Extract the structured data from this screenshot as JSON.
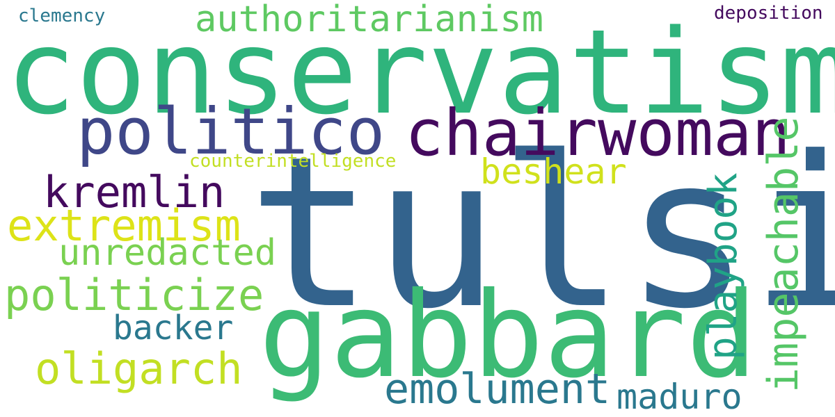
{
  "palette": {
    "background": "#ffffff"
  },
  "words": [
    {
      "id": "tulsi",
      "text": "tulsi",
      "color": "#33638d",
      "orientation": "horizontal"
    },
    {
      "id": "conservatism",
      "text": "conservatism",
      "color": "#2fb47c",
      "orientation": "horizontal"
    },
    {
      "id": "gabbard",
      "text": "gabbard",
      "color": "#3cbb75",
      "orientation": "horizontal"
    },
    {
      "id": "chairwoman",
      "text": "chairwoman",
      "color": "#440a5e",
      "orientation": "horizontal"
    },
    {
      "id": "politico",
      "text": "politico",
      "color": "#3f4788",
      "orientation": "horizontal"
    },
    {
      "id": "authoritarianism",
      "text": "authoritarianism",
      "color": "#5ec962",
      "orientation": "horizontal"
    },
    {
      "id": "impeachable",
      "text": "impeachable",
      "color": "#55c667",
      "orientation": "vertical"
    },
    {
      "id": "playbook",
      "text": "playbook",
      "color": "#20a386",
      "orientation": "vertical"
    },
    {
      "id": "kremlin",
      "text": "kremlin",
      "color": "#440a5e",
      "orientation": "horizontal"
    },
    {
      "id": "extremism",
      "text": "extremism",
      "color": "#dde318",
      "orientation": "horizontal"
    },
    {
      "id": "politicize",
      "text": "politicize",
      "color": "#7ad151",
      "orientation": "horizontal"
    },
    {
      "id": "emolument",
      "text": "emolument",
      "color": "#2a788e",
      "orientation": "horizontal"
    },
    {
      "id": "oligarch",
      "text": "oligarch",
      "color": "#c2df23",
      "orientation": "horizontal"
    },
    {
      "id": "beshear",
      "text": "beshear",
      "color": "#d0e11c",
      "orientation": "horizontal"
    },
    {
      "id": "unredacted",
      "text": "unredacted",
      "color": "#7ad151",
      "orientation": "horizontal"
    },
    {
      "id": "backer",
      "text": "backer",
      "color": "#2a788e",
      "orientation": "horizontal"
    },
    {
      "id": "maduro",
      "text": "maduro",
      "color": "#2a788e",
      "orientation": "horizontal"
    },
    {
      "id": "counterintelligence",
      "text": "counterintelligence",
      "color": "#c2df23",
      "orientation": "horizontal"
    },
    {
      "id": "clemency",
      "text": "clemency",
      "color": "#2a788e",
      "orientation": "horizontal"
    },
    {
      "id": "deposition",
      "text": "deposition",
      "color": "#440a5e",
      "orientation": "horizontal"
    }
  ]
}
